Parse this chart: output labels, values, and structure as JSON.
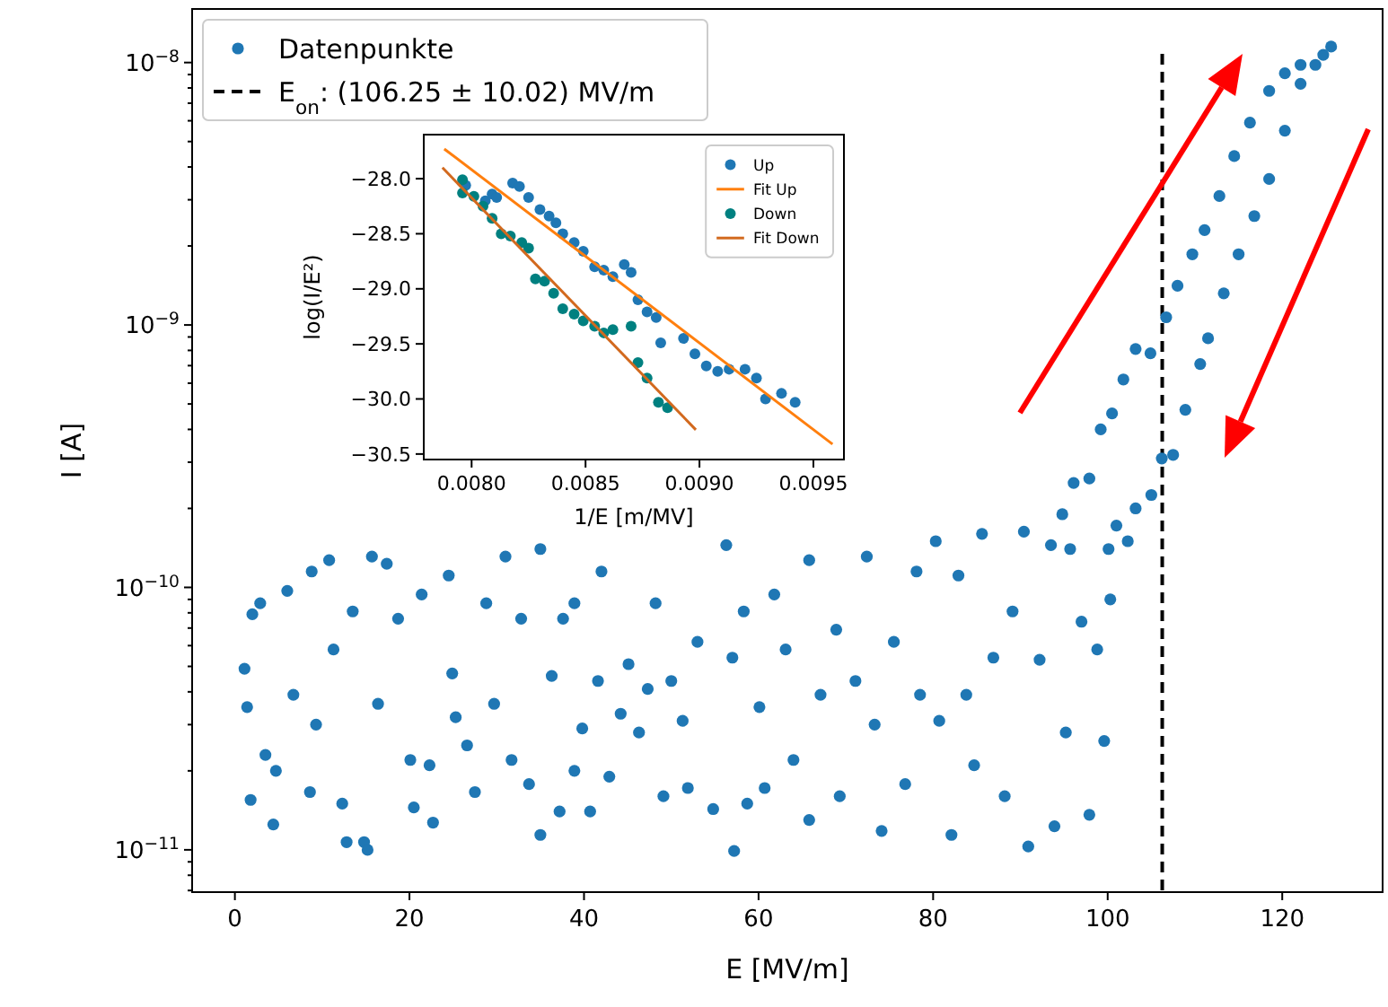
{
  "chart_data": [
    {
      "type": "scatter",
      "xlabel": "E [MV/m]",
      "ylabel": "I [A]",
      "log": "y",
      "legend": "top left",
      "xlim": [
        -4.9,
        131.5
      ],
      "ylim": [
        6.9e-12,
        1.6e-08
      ],
      "xticks": [
        0,
        20,
        40,
        60,
        80,
        100,
        120
      ],
      "yticks": [
        {
          "value": 7e-12,
          "label": null
        },
        {
          "value": 8e-12,
          "label": null
        },
        {
          "value": 9e-12,
          "label": null
        },
        {
          "value": 1e-11,
          "label": "10$^{−11}$"
        },
        {
          "value": 2e-11,
          "label": null
        },
        {
          "value": 3e-11,
          "label": null
        },
        {
          "value": 4e-11,
          "label": null
        },
        {
          "value": 5e-11,
          "label": null
        },
        {
          "value": 6e-11,
          "label": null
        },
        {
          "value": 7e-11,
          "label": null
        },
        {
          "value": 8e-11,
          "label": null
        },
        {
          "value": 9e-11,
          "label": null
        },
        {
          "value": 1e-10,
          "label": "10$^{−10}$"
        },
        {
          "value": 2e-10,
          "label": null
        },
        {
          "value": 3e-10,
          "label": null
        },
        {
          "value": 4e-10,
          "label": null
        },
        {
          "value": 5e-10,
          "label": null
        },
        {
          "value": 6e-10,
          "label": null
        },
        {
          "value": 7e-10,
          "label": null
        },
        {
          "value": 8e-10,
          "label": null
        },
        {
          "value": 9e-10,
          "label": null
        },
        {
          "value": 1e-09,
          "label": "10$^{−9}$"
        },
        {
          "value": 2e-09,
          "label": null
        },
        {
          "value": 3e-09,
          "label": null
        },
        {
          "value": 4e-09,
          "label": null
        },
        {
          "value": 5e-09,
          "label": null
        },
        {
          "value": 6e-09,
          "label": null
        },
        {
          "value": 7e-09,
          "label": null
        },
        {
          "value": 8e-09,
          "label": null
        },
        {
          "value": 9e-09,
          "label": null
        },
        {
          "value": 1e-08,
          "label": "10$^{−8}$"
        }
      ],
      "ref_lines": [
        {
          "axis": "x",
          "value": 106.25,
          "label": "E$_{on}$: (106.25 ± 10.02) MV/m",
          "color": "#000000",
          "line_style": "dashed"
        }
      ],
      "series": [
        {
          "name": "Datenpunkte",
          "marker": "circle",
          "color": "#1f77b4",
          "x": [
            1.1,
            1.4,
            2.0,
            1.8,
            2.9,
            3.5,
            4.7,
            4.4,
            6.0,
            6.7,
            8.6,
            8.8,
            9.3,
            10.8,
            11.3,
            12.3,
            12.8,
            13.5,
            14.8,
            15.2,
            15.7,
            16.4,
            17.4,
            18.7,
            20.1,
            20.5,
            21.4,
            22.3,
            22.7,
            24.5,
            24.9,
            25.3,
            26.6,
            27.5,
            28.8,
            29.7,
            31.0,
            31.7,
            32.8,
            33.7,
            35.0,
            35.0,
            36.3,
            37.2,
            37.6,
            38.9,
            38.9,
            39.8,
            40.7,
            41.6,
            42.0,
            42.9,
            44.2,
            45.1,
            46.3,
            47.3,
            48.2,
            49.1,
            50.0,
            51.3,
            51.9,
            53.0,
            54.8,
            56.3,
            57.0,
            57.2,
            58.3,
            58.7,
            60.1,
            60.7,
            61.8,
            63.1,
            64.0,
            65.8,
            65.8,
            67.1,
            68.9,
            69.3,
            71.1,
            72.4,
            73.3,
            74.1,
            75.5,
            76.8,
            78.1,
            78.5,
            80.3,
            80.7,
            82.1,
            82.9,
            83.8,
            84.7,
            85.6,
            86.9,
            88.2,
            89.1,
            90.4,
            90.9,
            92.2,
            93.5,
            93.9,
            95.2,
            95.7,
            97.0,
            97.9,
            98.8,
            99.6,
            100.3,
            100.1,
            101.0,
            102.3,
            103.2,
            105.0,
            106.2,
            107.5,
            108.9,
            110.6,
            111.5,
            113.3,
            115.0,
            116.8,
            118.5,
            120.3,
            122.1,
            124.7,
            94.8,
            96.1,
            97.9,
            99.2,
            100.5,
            101.8,
            103.2,
            104.9,
            106.7,
            108.0,
            109.7,
            111.1,
            112.8,
            114.5,
            116.3,
            118.5,
            120.3,
            122.1,
            123.8,
            125.6
          ],
          "values": [
            4.9e-11,
            3.5e-11,
            7.9e-11,
            1.55e-11,
            8.7e-11,
            2.3e-11,
            2e-11,
            1.25e-11,
            9.7e-11,
            3.9e-11,
            1.66e-11,
            1.15e-10,
            3e-11,
            1.27e-10,
            5.8e-11,
            1.5e-11,
            1.07e-11,
            8.1e-11,
            1.07e-11,
            1e-11,
            1.31e-10,
            3.6e-11,
            1.23e-10,
            7.6e-11,
            2.2e-11,
            1.45e-11,
            9.4e-11,
            2.1e-11,
            1.27e-11,
            1.11e-10,
            4.7e-11,
            3.2e-11,
            2.5e-11,
            1.66e-11,
            8.7e-11,
            3.6e-11,
            1.31e-10,
            2.2e-11,
            7.6e-11,
            1.78e-11,
            1.4e-10,
            1.14e-11,
            4.6e-11,
            1.4e-11,
            7.6e-11,
            8.7e-11,
            2e-11,
            2.9e-11,
            1.4e-11,
            4.4e-11,
            1.15e-10,
            1.9e-11,
            3.3e-11,
            5.1e-11,
            2.8e-11,
            4.1e-11,
            8.7e-11,
            1.6e-11,
            4.4e-11,
            3.1e-11,
            1.72e-11,
            6.2e-11,
            1.43e-11,
            1.45e-10,
            5.4e-11,
            9.9e-12,
            8.1e-11,
            1.5e-11,
            3.5e-11,
            1.72e-11,
            9.4e-11,
            5.8e-11,
            2.2e-11,
            1.27e-10,
            1.3e-11,
            3.9e-11,
            6.9e-11,
            1.6e-11,
            4.4e-11,
            1.31e-10,
            3e-11,
            1.18e-11,
            6.2e-11,
            1.78e-11,
            1.15e-10,
            3.9e-11,
            1.5e-10,
            3.1e-11,
            1.14e-11,
            1.11e-10,
            3.9e-11,
            2.1e-11,
            1.6e-10,
            5.4e-11,
            1.6e-11,
            8.1e-11,
            1.63e-10,
            1.03e-11,
            5.3e-11,
            1.45e-10,
            1.23e-11,
            2.8e-11,
            1.4e-10,
            7.4e-11,
            1.36e-11,
            5.8e-11,
            2.6e-11,
            9e-11,
            1.4e-10,
            1.72e-10,
            1.5e-10,
            2e-10,
            2.25e-10,
            3.1e-10,
            3.2e-10,
            4.75e-10,
            7.1e-10,
            8.9e-10,
            1.32e-09,
            1.86e-09,
            2.6e-09,
            3.6e-09,
            5.5e-09,
            8.3e-09,
            1.07e-08,
            1.9e-10,
            2.5e-10,
            2.6e-10,
            4e-10,
            4.6e-10,
            6.2e-10,
            8.1e-10,
            7.8e-10,
            1.07e-09,
            1.41e-09,
            1.86e-09,
            2.3e-09,
            3.1e-09,
            4.4e-09,
            5.9e-09,
            7.8e-09,
            9.1e-09,
            9.8e-09,
            9.8e-09,
            1.15e-08
          ]
        }
      ]
    },
    {
      "type": "scatter",
      "xlabel": "1/E [m/MV]",
      "ylabel": "log(I/E²)",
      "legend": "top right",
      "xlim": [
        0.00779,
        0.009634
      ],
      "ylim": [
        -30.55,
        -27.6
      ],
      "xticks": [
        {
          "value": 0.008,
          "label": "0.0080"
        },
        {
          "value": 0.0085,
          "label": "0.0085"
        },
        {
          "value": 0.009,
          "label": "0.0090"
        },
        {
          "value": 0.0095,
          "label": "0.0095"
        }
      ],
      "yticks": [
        {
          "value": -28,
          "label": "−28.0"
        },
        {
          "value": -28.5,
          "label": "−28.5"
        },
        {
          "value": -29,
          "label": "−29.0"
        },
        {
          "value": -29.5,
          "label": "−29.5"
        },
        {
          "value": -30,
          "label": "−30.0"
        },
        {
          "value": -30.5,
          "label": "−30.5"
        }
      ],
      "series": [
        {
          "name": "Up",
          "marker": "circle",
          "color": "#1f77b4",
          "x": [
            0.007974,
            0.00806,
            0.00809,
            0.00811,
            0.00818,
            0.00821,
            0.00825,
            0.0083,
            0.00834,
            0.00837,
            0.0084,
            0.00845,
            0.00849,
            0.00854,
            0.00858,
            0.00862,
            0.00867,
            0.0087,
            0.00873,
            0.00877,
            0.00881,
            0.00883,
            0.00893,
            0.00898,
            0.00903,
            0.00908,
            0.00913,
            0.0092,
            0.00925,
            0.00929,
            0.00936,
            0.00942
          ],
          "values": [
            -28.06,
            -28.2,
            -28.14,
            -28.17,
            -28.04,
            -28.07,
            -28.17,
            -28.28,
            -28.34,
            -28.4,
            -28.5,
            -28.58,
            -28.66,
            -28.8,
            -28.83,
            -28.89,
            -28.78,
            -28.85,
            -29.1,
            -29.21,
            -29.26,
            -29.49,
            -29.45,
            -29.59,
            -29.7,
            -29.75,
            -29.73,
            -29.73,
            -29.81,
            -30.0,
            -29.95,
            -30.03
          ]
        },
        {
          "name": "Fit Up",
          "type": "line",
          "color": "#ff7f0e",
          "x": [
            0.00788,
            0.009584
          ],
          "values": [
            -27.73,
            -30.41
          ]
        },
        {
          "name": "Down",
          "marker": "circle",
          "color": "#008080",
          "x": [
            0.00796,
            0.00796,
            0.00801,
            0.00805,
            0.00809,
            0.00813,
            0.00817,
            0.00822,
            0.00825,
            0.00828,
            0.00832,
            0.00836,
            0.0084,
            0.00845,
            0.00849,
            0.00854,
            0.00858,
            0.00862,
            0.0087,
            0.00873,
            0.00877,
            0.00882,
            0.00886
          ],
          "values": [
            -28.01,
            -28.13,
            -28.16,
            -28.25,
            -28.36,
            -28.5,
            -28.52,
            -28.58,
            -28.63,
            -28.91,
            -28.93,
            -29.04,
            -29.18,
            -29.23,
            -29.29,
            -29.34,
            -29.4,
            -29.37,
            -29.34,
            -29.67,
            -29.81,
            -30.03,
            -30.08
          ]
        },
        {
          "name": "Fit Down",
          "type": "line",
          "color": "#d2691e",
          "x": [
            0.007872,
            0.008984
          ],
          "values": [
            -27.9,
            -30.28
          ]
        }
      ]
    }
  ]
}
